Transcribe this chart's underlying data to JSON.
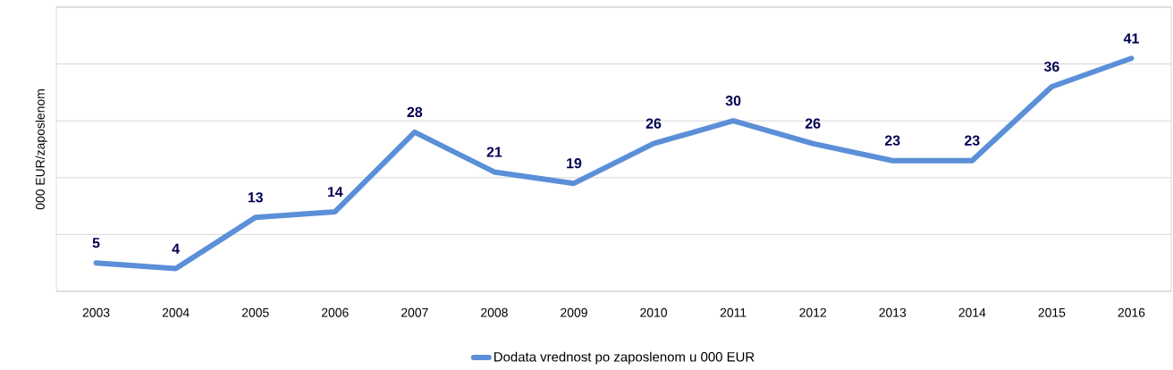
{
  "chart_data": {
    "type": "line",
    "ylabel": "000 EUR/zaposlenom",
    "categories": [
      "2003",
      "2004",
      "2005",
      "2006",
      "2007",
      "2008",
      "2009",
      "2010",
      "2011",
      "2012",
      "2013",
      "2014",
      "2015",
      "2016"
    ],
    "series": [
      {
        "name": "Dodata vrednost po zaposlenom u 000 EUR",
        "color": "#5b8fd8",
        "values": [
          5,
          4,
          13,
          14,
          28,
          21,
          19,
          26,
          30,
          26,
          23,
          23,
          36,
          41
        ]
      }
    ],
    "ylim": [
      0,
      50
    ],
    "yticks": [
      {
        "value": 0,
        "label": null
      },
      {
        "value": 10,
        "label": null
      },
      {
        "value": 20,
        "label": null
      },
      {
        "value": 30,
        "label": null
      },
      {
        "value": 40,
        "label": null
      },
      {
        "value": 50,
        "label": null
      }
    ],
    "tick_labels": "x",
    "grid": "y",
    "legend": "bottom",
    "data_labels": true,
    "marker": "none",
    "line_style": "solid"
  }
}
